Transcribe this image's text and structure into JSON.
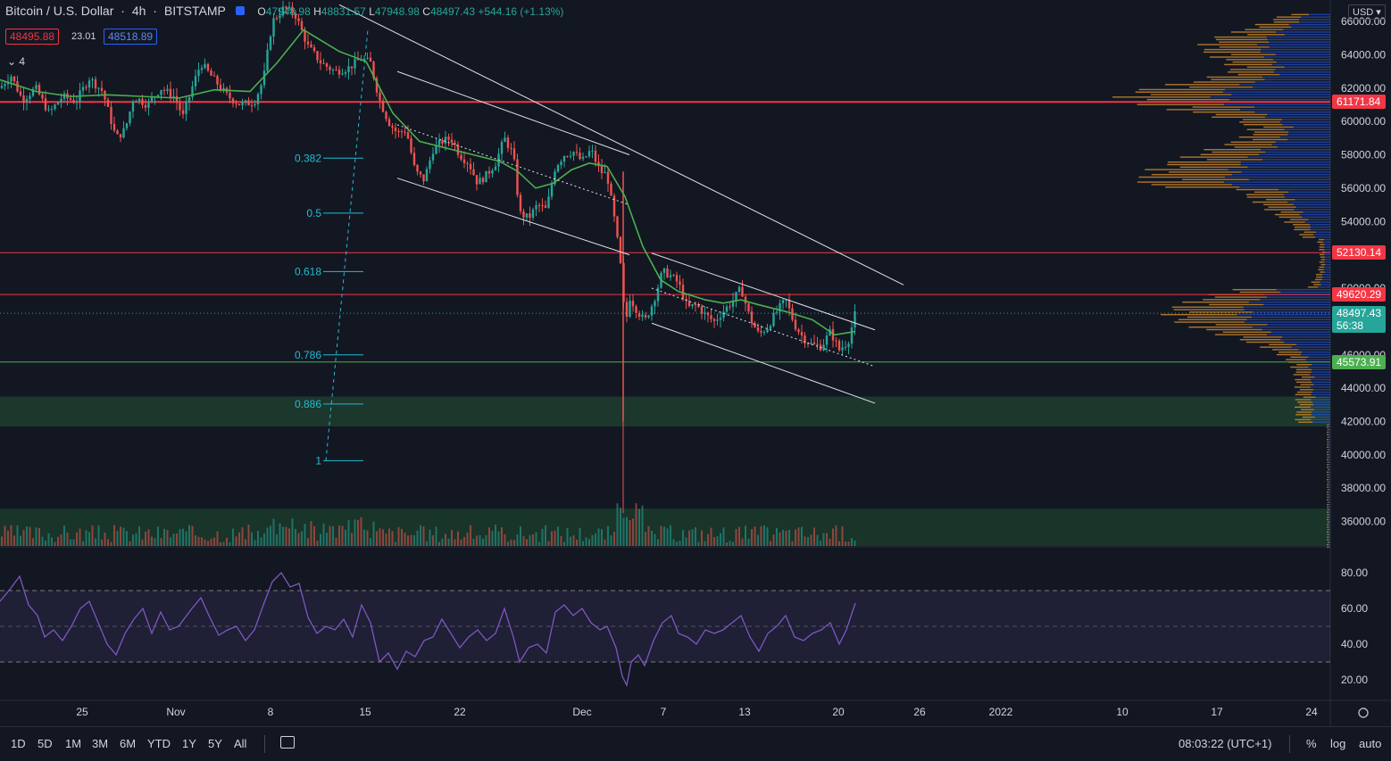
{
  "header": {
    "symbol": "Bitcoin / U.S. Dollar",
    "interval": "4h",
    "exchange": "BITSTAMP",
    "open_label": "O",
    "open": "47948.98",
    "high_label": "H",
    "high": "48831.57",
    "low_label": "L",
    "low": "47948.98",
    "close_label": "C",
    "close": "48497.43",
    "change": "+544.16 (+1.13%)",
    "sell_price": "48495.88",
    "spread": "23.01",
    "buy_price": "48518.89",
    "indicator_count": "4"
  },
  "currency": "USD",
  "price_badges": [
    {
      "label": "61171.84",
      "value": 61171.84,
      "color": "#f23645"
    },
    {
      "label": "52130.14",
      "value": 52130.14,
      "color": "#f23645"
    },
    {
      "label": "49620.29",
      "value": 49620.29,
      "color": "#f23645"
    },
    {
      "label": "48497.43",
      "sub": "56:38",
      "value": 48497.43,
      "color": "#26a69a"
    },
    {
      "label": "45573.91",
      "value": 45573.91,
      "color": "#4caf50"
    }
  ],
  "fib_levels": [
    {
      "label": "0.382",
      "price": 57800
    },
    {
      "label": "0.5",
      "price": 54500
    },
    {
      "label": "0.618",
      "price": 51000
    },
    {
      "label": "0.786",
      "price": 46000
    },
    {
      "label": "0.886",
      "price": 43050
    },
    {
      "label": "1",
      "price": 39650
    }
  ],
  "zone": {
    "top": 43500,
    "bottom": 41700,
    "color": "#1e3b2c"
  },
  "bottom_bar": {
    "timeframes": [
      "1D",
      "5D",
      "1M",
      "3M",
      "6M",
      "YTD",
      "1Y",
      "5Y",
      "All"
    ],
    "clock": "08:03:22 (UTC+1)",
    "percent": "%",
    "log": "log",
    "auto": "auto"
  },
  "chart_data": [
    {
      "type": "candlestick",
      "title": "Bitcoin / U.S. Dollar, 4h, BITSTAMP",
      "x_ticks": [
        "25",
        "Nov",
        "8",
        "15",
        "22",
        "Dec",
        "7",
        "13",
        "20",
        "26",
        "2022",
        "10",
        "17",
        "24"
      ],
      "ylim": [
        34500,
        66500
      ],
      "y_ticks": [
        36000,
        38000,
        40000,
        42000,
        44000,
        46000,
        48000,
        50000,
        52000,
        54000,
        56000,
        58000,
        60000,
        62000,
        64000,
        66000
      ],
      "y_tick_labels": [
        "36000.00",
        "38000.00",
        "40000.00",
        "42000.00",
        "44000.00",
        "46000.00",
        "48000.00",
        "50000.00",
        "52000.00",
        "54000.00",
        "56000.00",
        "58000.00",
        "60000.00",
        "62000.00",
        "64000.00",
        "66000.00"
      ],
      "price_path": [
        [
          0,
          62000
        ],
        [
          12,
          62800
        ],
        [
          25,
          61300
        ],
        [
          40,
          62000
        ],
        [
          55,
          60500
        ],
        [
          70,
          61500
        ],
        [
          85,
          61200
        ],
        [
          100,
          62600
        ],
        [
          115,
          61800
        ],
        [
          130,
          59000
        ],
        [
          140,
          59500
        ],
        [
          150,
          61500
        ],
        [
          165,
          61000
        ],
        [
          180,
          62000
        ],
        [
          195,
          61500
        ],
        [
          205,
          60300
        ],
        [
          215,
          62000
        ],
        [
          225,
          63500
        ],
        [
          240,
          62500
        ],
        [
          255,
          61500
        ],
        [
          270,
          61000
        ],
        [
          285,
          61200
        ],
        [
          295,
          62500
        ],
        [
          305,
          66000
        ],
        [
          318,
          66800
        ],
        [
          330,
          66500
        ],
        [
          345,
          64500
        ],
        [
          360,
          63500
        ],
        [
          375,
          63000
        ],
        [
          390,
          63200
        ],
        [
          405,
          63800
        ],
        [
          415,
          63500
        ],
        [
          425,
          61300
        ],
        [
          435,
          60000
        ],
        [
          445,
          59300
        ],
        [
          455,
          59500
        ],
        [
          465,
          57000
        ],
        [
          475,
          56500
        ],
        [
          485,
          58300
        ],
        [
          495,
          58800
        ],
        [
          505,
          59000
        ],
        [
          515,
          58000
        ],
        [
          525,
          57500
        ],
        [
          535,
          56300
        ],
        [
          545,
          56800
        ],
        [
          555,
          57500
        ],
        [
          565,
          59000
        ],
        [
          575,
          58000
        ],
        [
          582,
          54500
        ],
        [
          592,
          54200
        ],
        [
          602,
          55000
        ],
        [
          612,
          54700
        ],
        [
          622,
          57300
        ],
        [
          632,
          58000
        ],
        [
          642,
          58200
        ],
        [
          652,
          57600
        ],
        [
          662,
          58300
        ],
        [
          672,
          57000
        ],
        [
          680,
          56800
        ],
        [
          690,
          53500
        ],
        [
          697,
          50500
        ],
        [
          700,
          47500
        ],
        [
          705,
          49500
        ],
        [
          712,
          48800
        ],
        [
          722,
          48000
        ],
        [
          732,
          49200
        ],
        [
          742,
          51000
        ],
        [
          750,
          50800
        ],
        [
          760,
          50300
        ],
        [
          770,
          48800
        ],
        [
          780,
          49000
        ],
        [
          790,
          48400
        ],
        [
          800,
          48000
        ],
        [
          810,
          48600
        ],
        [
          820,
          49200
        ],
        [
          830,
          50000
        ],
        [
          840,
          48200
        ],
        [
          850,
          47200
        ],
        [
          860,
          47700
        ],
        [
          870,
          48600
        ],
        [
          880,
          49300
        ],
        [
          890,
          47800
        ],
        [
          900,
          47000
        ],
        [
          910,
          46600
        ],
        [
          920,
          46500
        ],
        [
          930,
          47400
        ],
        [
          940,
          46300
        ],
        [
          950,
          46800
        ],
        [
          958,
          48500
        ]
      ],
      "ma_path": [
        [
          0,
          62500
        ],
        [
          40,
          61800
        ],
        [
          80,
          61500
        ],
        [
          120,
          61600
        ],
        [
          160,
          61500
        ],
        [
          200,
          61400
        ],
        [
          240,
          61900
        ],
        [
          280,
          61800
        ],
        [
          310,
          63500
        ],
        [
          340,
          65500
        ],
        [
          380,
          64200
        ],
        [
          410,
          63600
        ],
        [
          440,
          60500
        ],
        [
          470,
          58800
        ],
        [
          500,
          58400
        ],
        [
          530,
          58000
        ],
        [
          560,
          57600
        ],
        [
          580,
          57000
        ],
        [
          600,
          56000
        ],
        [
          620,
          56300
        ],
        [
          640,
          57100
        ],
        [
          660,
          57500
        ],
        [
          680,
          57300
        ],
        [
          700,
          55500
        ],
        [
          720,
          52500
        ],
        [
          740,
          50500
        ],
        [
          760,
          49800
        ],
        [
          790,
          49300
        ],
        [
          810,
          49100
        ],
        [
          830,
          49300
        ],
        [
          850,
          49000
        ],
        [
          880,
          48600
        ],
        [
          910,
          48100
        ],
        [
          935,
          47200
        ],
        [
          958,
          47400
        ]
      ],
      "trendlines": [
        {
          "name": "outer-upper-trendline",
          "from": [
            380,
            67000
          ],
          "to": [
            1012,
            50200
          ]
        },
        {
          "name": "channel1-upper",
          "from": [
            445,
            63000
          ],
          "to": [
            705,
            58000
          ]
        },
        {
          "name": "channel1-lower",
          "from": [
            445,
            56600
          ],
          "to": [
            705,
            52000
          ]
        },
        {
          "name": "channel2-upper",
          "from": [
            730,
            52100
          ],
          "to": [
            980,
            47500
          ]
        },
        {
          "name": "channel2-lower",
          "from": [
            730,
            47900
          ],
          "to": [
            980,
            43100
          ]
        }
      ],
      "dotted_midlines": [
        {
          "name": "channel1-mid",
          "from": [
            445,
            59800
          ],
          "to": [
            705,
            55000
          ]
        },
        {
          "name": "channel2-mid",
          "from": [
            730,
            50000
          ],
          "to": [
            980,
            45300
          ]
        }
      ],
      "horizontal_levels": [
        {
          "name": "resistance-61171",
          "value": 61171.84,
          "color": "#f23645",
          "width": 2
        },
        {
          "name": "resistance-52130",
          "value": 52130.14,
          "color": "#f23645",
          "width": 1
        },
        {
          "name": "resistance-49620",
          "value": 49620.29,
          "color": "#f23645",
          "width": 1
        },
        {
          "name": "support-45573",
          "value": 45573.91,
          "color": "#4caf50",
          "width": 1
        }
      ],
      "volume_profile_note": "horizontal volume profile on the right edge"
    },
    {
      "type": "line",
      "title": "RSI",
      "ylim": [
        12,
        88
      ],
      "y_ticks": [
        20,
        40,
        60,
        80
      ],
      "y_tick_labels": [
        "20.00",
        "40.00",
        "60.00",
        "80.00"
      ],
      "band": [
        30,
        70
      ],
      "mid": 50,
      "series": [
        {
          "values": [
            [
              0,
              64
            ],
            [
              10,
              70
            ],
            [
              22,
              78
            ],
            [
              32,
              62
            ],
            [
              42,
              56
            ],
            [
              50,
              44
            ],
            [
              60,
              48
            ],
            [
              70,
              42
            ],
            [
              80,
              50
            ],
            [
              90,
              60
            ],
            [
              100,
              64
            ],
            [
              110,
              52
            ],
            [
              120,
              40
            ],
            [
              130,
              34
            ],
            [
              140,
              46
            ],
            [
              150,
              54
            ],
            [
              160,
              60
            ],
            [
              170,
              46
            ],
            [
              180,
              58
            ],
            [
              190,
              48
            ],
            [
              200,
              50
            ],
            [
              215,
              60
            ],
            [
              225,
              66
            ],
            [
              235,
              55
            ],
            [
              245,
              45
            ],
            [
              255,
              48
            ],
            [
              265,
              50
            ],
            [
              275,
              42
            ],
            [
              285,
              48
            ],
            [
              295,
              62
            ],
            [
              305,
              75
            ],
            [
              315,
              80
            ],
            [
              325,
              72
            ],
            [
              335,
              74
            ],
            [
              345,
              55
            ],
            [
              355,
              46
            ],
            [
              365,
              50
            ],
            [
              375,
              48
            ],
            [
              385,
              54
            ],
            [
              395,
              44
            ],
            [
              405,
              62
            ],
            [
              415,
              52
            ],
            [
              425,
              30
            ],
            [
              435,
              35
            ],
            [
              445,
              26
            ],
            [
              455,
              36
            ],
            [
              465,
              33
            ],
            [
              475,
              42
            ],
            [
              485,
              44
            ],
            [
              495,
              54
            ],
            [
              505,
              46
            ],
            [
              515,
              38
            ],
            [
              525,
              44
            ],
            [
              535,
              48
            ],
            [
              545,
              42
            ],
            [
              555,
              46
            ],
            [
              565,
              60
            ],
            [
              575,
              44
            ],
            [
              582,
              30
            ],
            [
              592,
              38
            ],
            [
              602,
              40
            ],
            [
              612,
              35
            ],
            [
              622,
              58
            ],
            [
              632,
              62
            ],
            [
              642,
              56
            ],
            [
              652,
              60
            ],
            [
              662,
              52
            ],
            [
              672,
              48
            ],
            [
              680,
              50
            ],
            [
              690,
              38
            ],
            [
              697,
              22
            ],
            [
              702,
              17
            ],
            [
              707,
              30
            ],
            [
              715,
              34
            ],
            [
              722,
              28
            ],
            [
              732,
              42
            ],
            [
              742,
              52
            ],
            [
              752,
              56
            ],
            [
              760,
              46
            ],
            [
              770,
              44
            ],
            [
              780,
              40
            ],
            [
              790,
              48
            ],
            [
              800,
              46
            ],
            [
              810,
              48
            ],
            [
              820,
              52
            ],
            [
              830,
              56
            ],
            [
              840,
              44
            ],
            [
              850,
              36
            ],
            [
              860,
              46
            ],
            [
              870,
              50
            ],
            [
              880,
              56
            ],
            [
              890,
              44
            ],
            [
              900,
              42
            ],
            [
              910,
              46
            ],
            [
              920,
              48
            ],
            [
              930,
              52
            ],
            [
              940,
              40
            ],
            [
              948,
              48
            ],
            [
              958,
              63
            ]
          ]
        }
      ]
    }
  ]
}
